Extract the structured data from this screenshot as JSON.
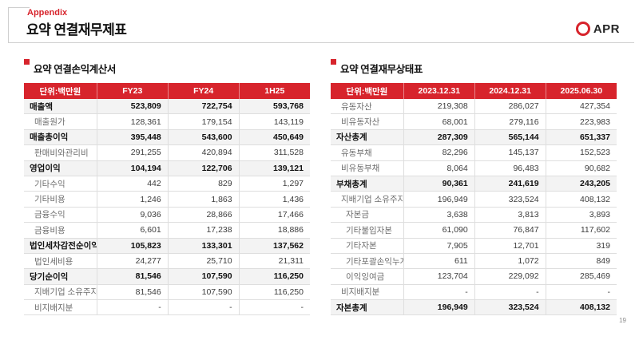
{
  "page": {
    "appendix_label": "Appendix",
    "title": "요약 연결재무제표",
    "logo_text": "APR",
    "page_number": "19",
    "accent_color": "#d7242c"
  },
  "tables": {
    "income_statement": {
      "title": "요약 연결손익계산서",
      "unit_label": "단위:백만원",
      "columns": [
        "FY23",
        "FY24",
        "1H25"
      ],
      "rows": [
        {
          "label": "매출액",
          "style": "total",
          "values": [
            "523,809",
            "722,754",
            "593,768"
          ]
        },
        {
          "label": "매출원가",
          "style": "level1",
          "values": [
            "128,361",
            "179,154",
            "143,119"
          ]
        },
        {
          "label": "매출총이익",
          "style": "total",
          "values": [
            "395,448",
            "543,600",
            "450,649"
          ]
        },
        {
          "label": "판매비와관리비",
          "style": "level1",
          "values": [
            "291,255",
            "420,894",
            "311,528"
          ]
        },
        {
          "label": "영업이익",
          "style": "total",
          "values": [
            "104,194",
            "122,706",
            "139,121"
          ]
        },
        {
          "label": "기타수익",
          "style": "level1",
          "values": [
            "442",
            "829",
            "1,297"
          ]
        },
        {
          "label": "기타비용",
          "style": "level1",
          "values": [
            "1,246",
            "1,863",
            "1,436"
          ]
        },
        {
          "label": "금융수익",
          "style": "level1",
          "values": [
            "9,036",
            "28,866",
            "17,466"
          ]
        },
        {
          "label": "금융비용",
          "style": "level1",
          "values": [
            "6,601",
            "17,238",
            "18,886"
          ]
        },
        {
          "label": "법인세차감전순이익",
          "style": "total",
          "values": [
            "105,823",
            "133,301",
            "137,562"
          ]
        },
        {
          "label": "법인세비용",
          "style": "level1",
          "values": [
            "24,277",
            "25,710",
            "21,311"
          ]
        },
        {
          "label": "당기순이익",
          "style": "total",
          "values": [
            "81,546",
            "107,590",
            "116,250"
          ]
        },
        {
          "label": "지배기업 소유주지분",
          "style": "level1",
          "values": [
            "81,546",
            "107,590",
            "116,250"
          ]
        },
        {
          "label": "비지배지분",
          "style": "level1",
          "values": [
            "-",
            "-",
            "-"
          ]
        }
      ]
    },
    "balance_sheet": {
      "title": "요약 연결재무상태표",
      "unit_label": "단위:백만원",
      "columns": [
        "2023.12.31",
        "2024.12.31",
        "2025.06.30"
      ],
      "rows": [
        {
          "label": "유동자산",
          "style": "level1",
          "values": [
            "219,308",
            "286,027",
            "427,354"
          ]
        },
        {
          "label": "비유동자산",
          "style": "level1",
          "values": [
            "68,001",
            "279,116",
            "223,983"
          ]
        },
        {
          "label": "자산총계",
          "style": "total",
          "values": [
            "287,309",
            "565,144",
            "651,337"
          ]
        },
        {
          "label": "유동부채",
          "style": "level1",
          "values": [
            "82,296",
            "145,137",
            "152,523"
          ]
        },
        {
          "label": "비유동부채",
          "style": "level1",
          "values": [
            "8,064",
            "96,483",
            "90,682"
          ]
        },
        {
          "label": "부채총계",
          "style": "total",
          "values": [
            "90,361",
            "241,619",
            "243,205"
          ]
        },
        {
          "label": "지배기업 소유주지분",
          "style": "level1",
          "values": [
            "196,949",
            "323,524",
            "408,132"
          ]
        },
        {
          "label": "자본금",
          "style": "level2",
          "values": [
            "3,638",
            "3,813",
            "3,893"
          ]
        },
        {
          "label": "기타불입자본",
          "style": "level2",
          "values": [
            "61,090",
            "76,847",
            "117,602"
          ]
        },
        {
          "label": "기타자본",
          "style": "level2",
          "values": [
            "7,905",
            "12,701",
            "319"
          ]
        },
        {
          "label": "기타포괄손익누계액",
          "style": "level2",
          "values": [
            "611",
            "1,072",
            "849"
          ]
        },
        {
          "label": "이익잉여금",
          "style": "level2",
          "values": [
            "123,704",
            "229,092",
            "285,469"
          ]
        },
        {
          "label": "비지배지분",
          "style": "level1",
          "values": [
            "-",
            "-",
            "-"
          ]
        },
        {
          "label": "자본총계",
          "style": "total",
          "values": [
            "196,949",
            "323,524",
            "408,132"
          ]
        }
      ]
    }
  }
}
